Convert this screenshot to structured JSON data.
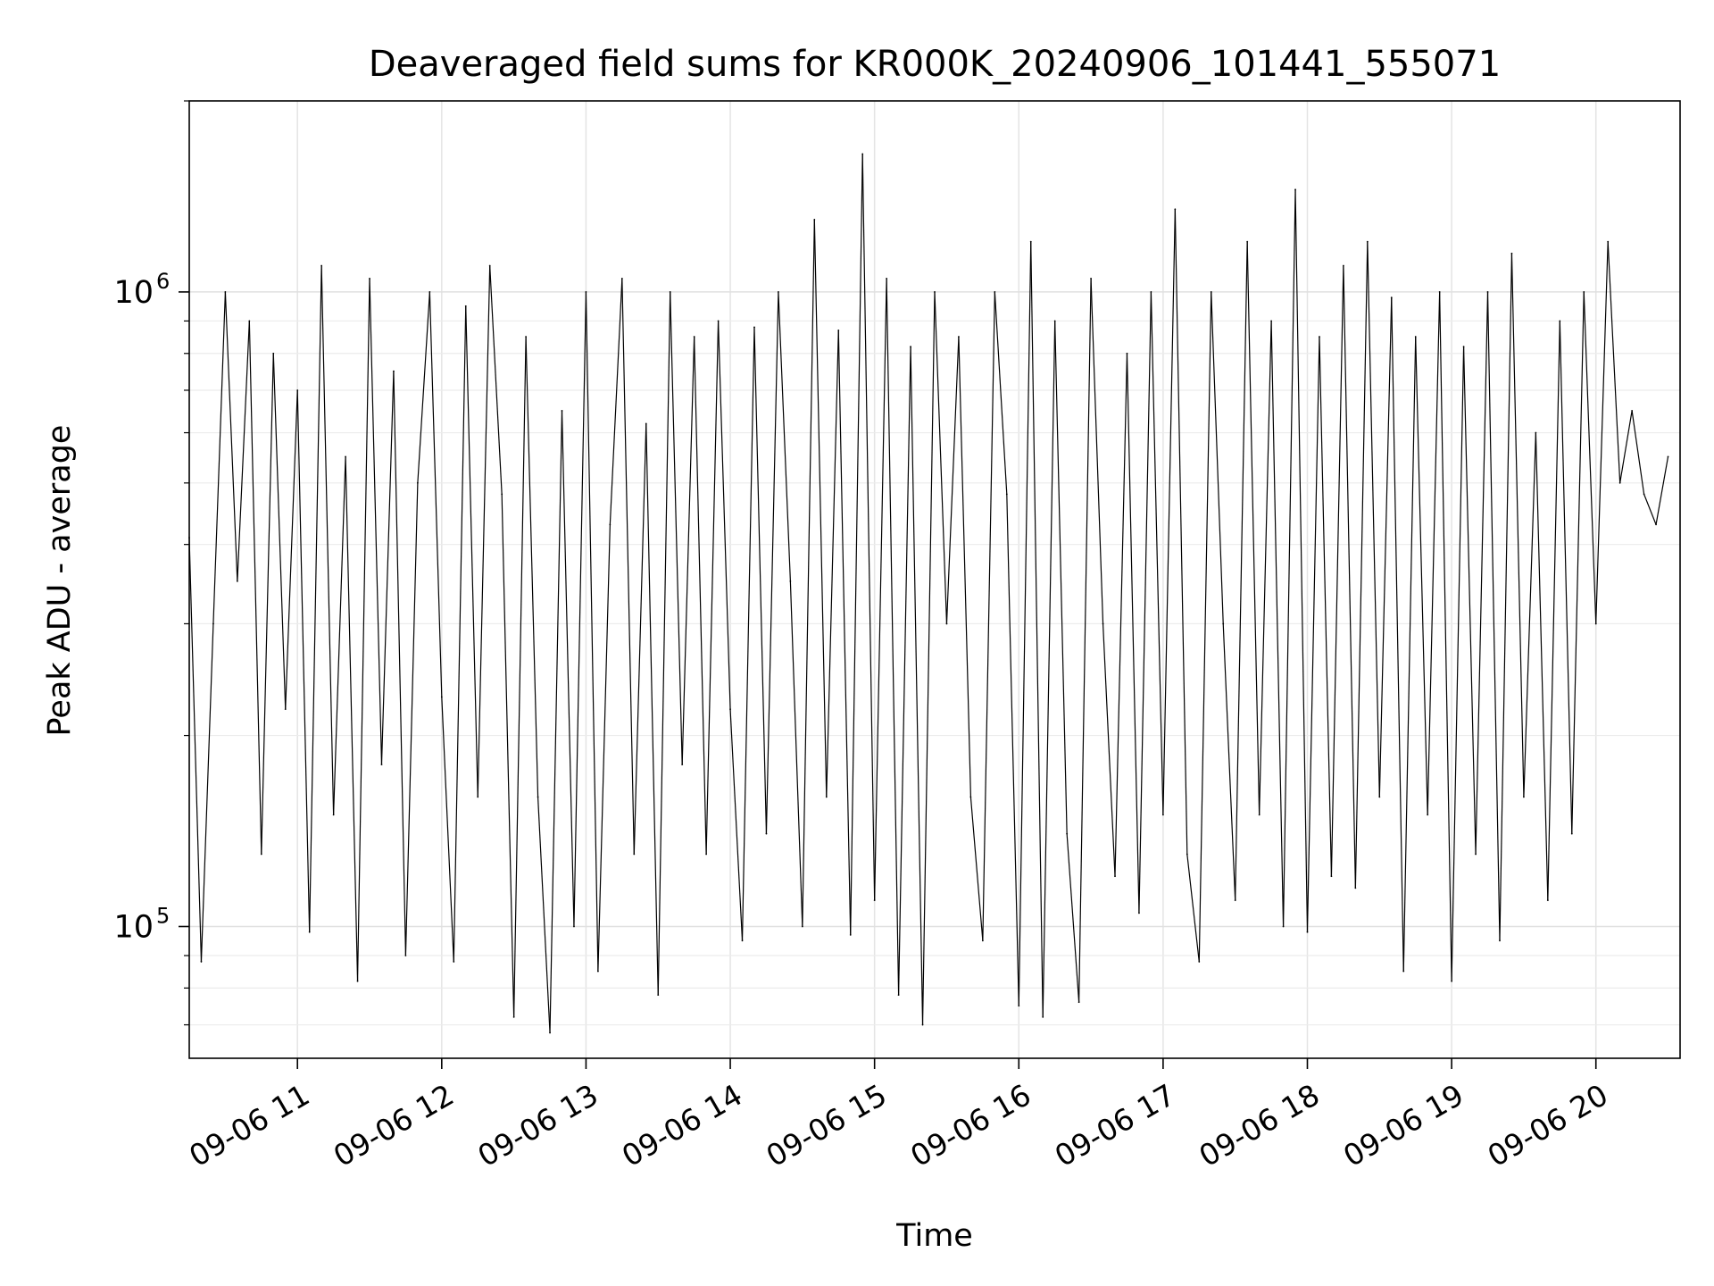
{
  "chart_data": {
    "type": "line",
    "title": "Deaveraged field sums for KR000K_20240906_101441_555071",
    "xlabel": "Time",
    "ylabel": "Peak ADU - average",
    "yscale": "log",
    "ylim": [
      62000,
      2000000
    ],
    "xlim": [
      "09-06 10:15",
      "09-06 20:35"
    ],
    "xticks": [
      "09-06 11",
      "09-06 12",
      "09-06 13",
      "09-06 14",
      "09-06 15",
      "09-06 16",
      "09-06 17",
      "09-06 18",
      "09-06 19",
      "09-06 20"
    ],
    "ytick_labels": [
      {
        "value": 100000,
        "mantissa": "10",
        "exponent": "5"
      },
      {
        "value": 1000000,
        "mantissa": "10",
        "exponent": "6"
      }
    ],
    "grid": true,
    "line_color": "#000000",
    "series": [
      {
        "x": [
          "09-06 10:15",
          "09-06 10:20",
          "09-06 10:25",
          "09-06 10:30",
          "09-06 10:35",
          "09-06 10:40",
          "09-06 10:45",
          "09-06 10:50",
          "09-06 10:55",
          "09-06 11:00",
          "09-06 11:05",
          "09-06 11:10",
          "09-06 11:15",
          "09-06 11:20",
          "09-06 11:25",
          "09-06 11:30",
          "09-06 11:35",
          "09-06 11:40",
          "09-06 11:45",
          "09-06 11:50",
          "09-06 11:55",
          "09-06 12:00",
          "09-06 12:05",
          "09-06 12:10",
          "09-06 12:15",
          "09-06 12:20",
          "09-06 12:25",
          "09-06 12:30",
          "09-06 12:35",
          "09-06 12:40",
          "09-06 12:45",
          "09-06 12:50",
          "09-06 12:55",
          "09-06 13:00",
          "09-06 13:05",
          "09-06 13:10",
          "09-06 13:15",
          "09-06 13:20",
          "09-06 13:25",
          "09-06 13:30",
          "09-06 13:35",
          "09-06 13:40",
          "09-06 13:45",
          "09-06 13:50",
          "09-06 13:55",
          "09-06 14:00",
          "09-06 14:05",
          "09-06 14:10",
          "09-06 14:15",
          "09-06 14:20",
          "09-06 14:25",
          "09-06 14:30",
          "09-06 14:35",
          "09-06 14:40",
          "09-06 14:45",
          "09-06 14:50",
          "09-06 14:55",
          "09-06 15:00",
          "09-06 15:05",
          "09-06 15:10",
          "09-06 15:15",
          "09-06 15:20",
          "09-06 15:25",
          "09-06 15:30",
          "09-06 15:35",
          "09-06 15:40",
          "09-06 15:45",
          "09-06 15:50",
          "09-06 15:55",
          "09-06 16:00",
          "09-06 16:05",
          "09-06 16:10",
          "09-06 16:15",
          "09-06 16:20",
          "09-06 16:25",
          "09-06 16:30",
          "09-06 16:35",
          "09-06 16:40",
          "09-06 16:45",
          "09-06 16:50",
          "09-06 16:55",
          "09-06 17:00",
          "09-06 17:05",
          "09-06 17:10",
          "09-06 17:15",
          "09-06 17:20",
          "09-06 17:25",
          "09-06 17:30",
          "09-06 17:35",
          "09-06 17:40",
          "09-06 17:45",
          "09-06 17:50",
          "09-06 17:55",
          "09-06 18:00",
          "09-06 18:05",
          "09-06 18:10",
          "09-06 18:15",
          "09-06 18:20",
          "09-06 18:25",
          "09-06 18:30",
          "09-06 18:35",
          "09-06 18:40",
          "09-06 18:45",
          "09-06 18:50",
          "09-06 18:55",
          "09-06 19:00",
          "09-06 19:05",
          "09-06 19:10",
          "09-06 19:15",
          "09-06 19:20",
          "09-06 19:25",
          "09-06 19:30",
          "09-06 19:35",
          "09-06 19:40",
          "09-06 19:45",
          "09-06 19:50",
          "09-06 19:55",
          "09-06 20:00",
          "09-06 20:05",
          "09-06 20:10",
          "09-06 20:15",
          "09-06 20:20",
          "09-06 20:25",
          "09-06 20:30"
        ],
        "y": [
          410000,
          88000,
          300000,
          1000000,
          350000,
          900000,
          130000,
          800000,
          220000,
          700000,
          98000,
          1100000,
          150000,
          550000,
          82000,
          1050000,
          180000,
          750000,
          90000,
          500000,
          1000000,
          230000,
          88000,
          950000,
          160000,
          1100000,
          480000,
          72000,
          850000,
          160000,
          68000,
          650000,
          100000,
          1000000,
          85000,
          430000,
          1050000,
          130000,
          620000,
          78000,
          1000000,
          180000,
          850000,
          130000,
          900000,
          220000,
          95000,
          880000,
          140000,
          1000000,
          350000,
          100000,
          1300000,
          160000,
          870000,
          97000,
          1650000,
          110000,
          1050000,
          78000,
          820000,
          70000,
          1000000,
          300000,
          850000,
          160000,
          95000,
          1000000,
          480000,
          75000,
          1200000,
          72000,
          900000,
          140000,
          76000,
          1050000,
          300000,
          120000,
          800000,
          105000,
          1000000,
          150000,
          1350000,
          130000,
          88000,
          1000000,
          300000,
          110000,
          1200000,
          150000,
          900000,
          100000,
          1450000,
          98000,
          850000,
          120000,
          1100000,
          115000,
          1200000,
          160000,
          980000,
          85000,
          850000,
          150000,
          1000000,
          82000,
          820000,
          130000,
          1000000,
          95000,
          1150000,
          160000,
          600000,
          110000,
          900000,
          140000,
          1000000,
          300000,
          1200000,
          500000,
          650000,
          480000,
          430000,
          550000
        ]
      }
    ]
  }
}
